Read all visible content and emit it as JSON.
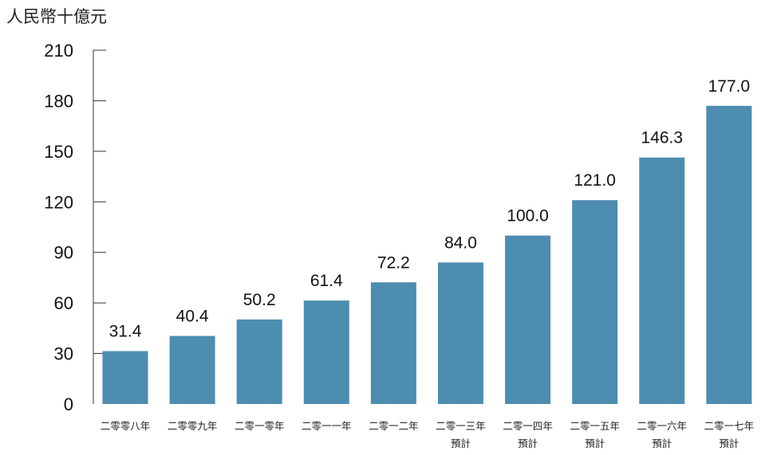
{
  "chart_data": {
    "type": "bar",
    "unit_label": "人民幣十億元",
    "categories": [
      [
        "二零零八年"
      ],
      [
        "二零零九年"
      ],
      [
        "二零一零年"
      ],
      [
        "二零一一年"
      ],
      [
        "二零一二年"
      ],
      [
        "二零一三年",
        "預計"
      ],
      [
        "二零一四年",
        "預計"
      ],
      [
        "二零一五年",
        "預計"
      ],
      [
        "二零一六年",
        "預計"
      ],
      [
        "二零一七年",
        "預計"
      ]
    ],
    "values": [
      31.4,
      40.4,
      50.2,
      61.4,
      72.2,
      84.0,
      100.0,
      121.0,
      146.3,
      177.0
    ],
    "value_labels": [
      "31.4",
      "40.4",
      "50.2",
      "61.4",
      "72.2",
      "84.0",
      "100.0",
      "121.0",
      "146.3",
      "177.0"
    ],
    "ylim": [
      0,
      210
    ],
    "yticks": [
      0,
      30,
      60,
      90,
      120,
      150,
      180,
      210
    ],
    "bar_color": "#4d8db0",
    "axis_color": "#333333",
    "grid": false
  }
}
